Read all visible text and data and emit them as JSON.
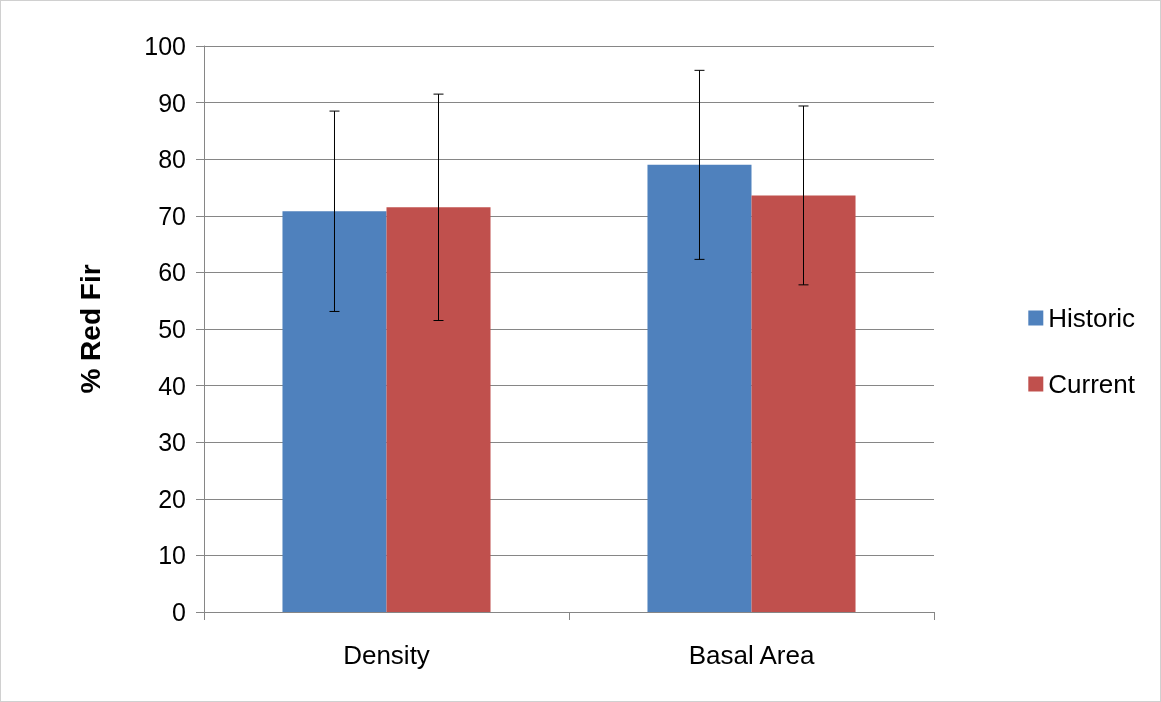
{
  "chart_data": {
    "type": "bar",
    "ylabel": "% Red Fir",
    "categories": [
      "Density",
      "Basal Area"
    ],
    "series": [
      {
        "name": "Historic",
        "color": "#4f81bd",
        "values": [
          70.8,
          79.0
        ],
        "errors": [
          17.7,
          16.7
        ]
      },
      {
        "name": "Current",
        "color": "#c0504d",
        "values": [
          71.5,
          73.6
        ],
        "errors": [
          20.0,
          15.8
        ]
      }
    ],
    "ylim": [
      0,
      100
    ],
    "yticks": [
      0,
      10,
      20,
      30,
      40,
      50,
      60,
      70,
      80,
      90,
      100
    ],
    "grid": "y",
    "legend": "right"
  }
}
